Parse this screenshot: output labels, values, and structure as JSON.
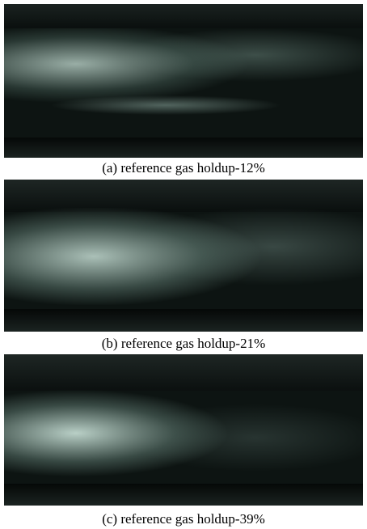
{
  "figure": {
    "panels": [
      {
        "caption": "(a) reference gas holdup-12%"
      },
      {
        "caption": "(b) reference gas holdup-21%"
      },
      {
        "caption": "(c) reference gas holdup-39%"
      }
    ]
  }
}
